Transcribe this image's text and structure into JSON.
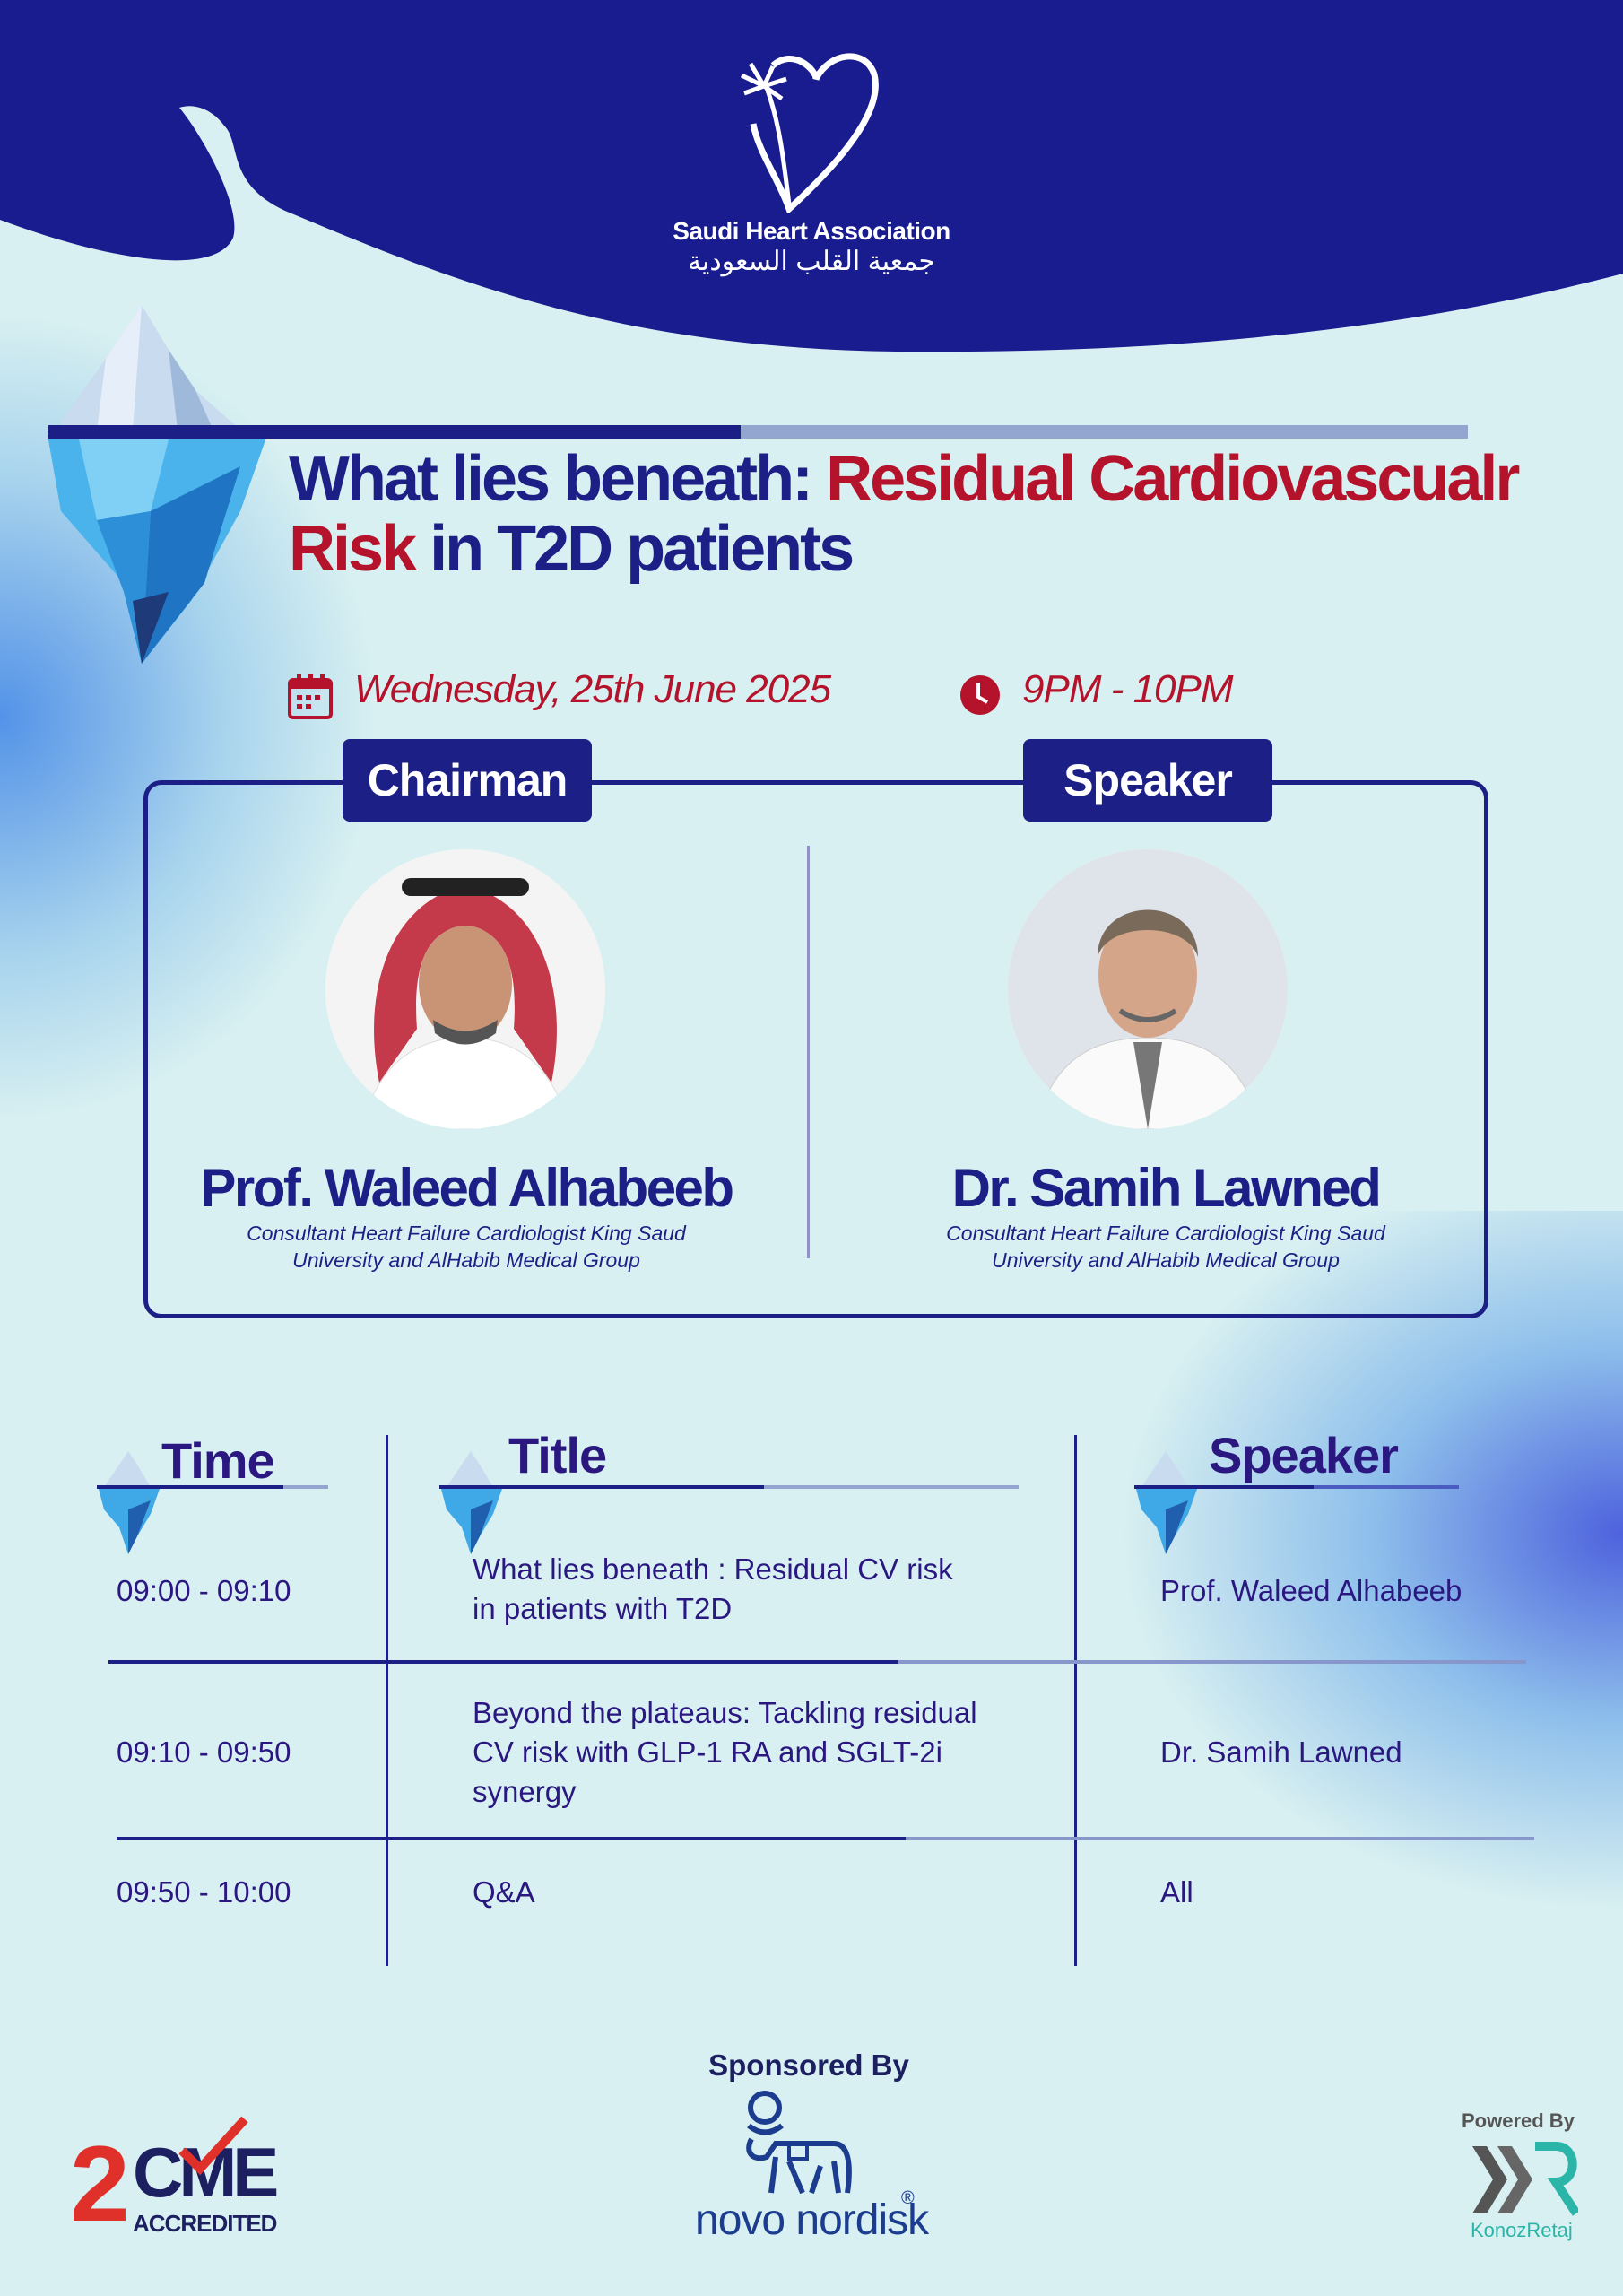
{
  "header": {
    "org_name_en": "Saudi Heart Association",
    "org_name_ar": "جمعية القلب السعودية",
    "logo_icon": "heart-palm-logo-icon"
  },
  "event": {
    "title_part1": "What lies beneath: ",
    "title_part2": "Residual Cardiovascualr",
    "title_part3": "Risk",
    "title_part4": " in T2D patients",
    "date": "Wednesday, 25th June 2025",
    "time": "9PM - 10PM",
    "progress_fraction": 0.5
  },
  "panel": {
    "chairman": {
      "label": "Chairman",
      "name": "Prof. Waleed Alhabeeb",
      "role_line1": "Consultant Heart Failure Cardiologist King Saud",
      "role_line2": "University and AlHabib Medical Group"
    },
    "speaker": {
      "label": "Speaker",
      "name": "Dr. Samih Lawned",
      "role_line1": "Consultant Heart Failure Cardiologist King Saud",
      "role_line2": "University and AlHabib Medical Group"
    }
  },
  "agenda": {
    "headers": {
      "time": "Time",
      "title": "Title",
      "speaker": "Speaker"
    },
    "rows": [
      {
        "time": "09:00 - 09:10",
        "title_line1": "What lies beneath : Residual CV risk",
        "title_line2": "in patients with T2D",
        "title_line3": "",
        "speaker": "Prof. Waleed Alhabeeb"
      },
      {
        "time": "09:10 - 09:50",
        "title_line1": "Beyond the plateaus: Tackling residual",
        "title_line2": "CV risk with GLP-1 RA and SGLT-2i",
        "title_line3": "synergy",
        "speaker": "Dr. Samih Lawned"
      },
      {
        "time": "09:50 - 10:00",
        "title_line1": "Q&A",
        "title_line2": "",
        "title_line3": "",
        "speaker": "All"
      }
    ]
  },
  "footer": {
    "cme_number": "2",
    "cme_text": "CME",
    "cme_sub": "ACCREDITED",
    "sponsored_by": "Sponsored By",
    "sponsor_name": "novo nordisk",
    "sponsor_reg": "®",
    "powered_by": "Powered By",
    "powered_name": "KonozRetaj"
  },
  "colors": {
    "navy": "#1c1f86",
    "red": "#b5122b",
    "background": "#d8f0f1",
    "teal": "#2bb5a8"
  }
}
